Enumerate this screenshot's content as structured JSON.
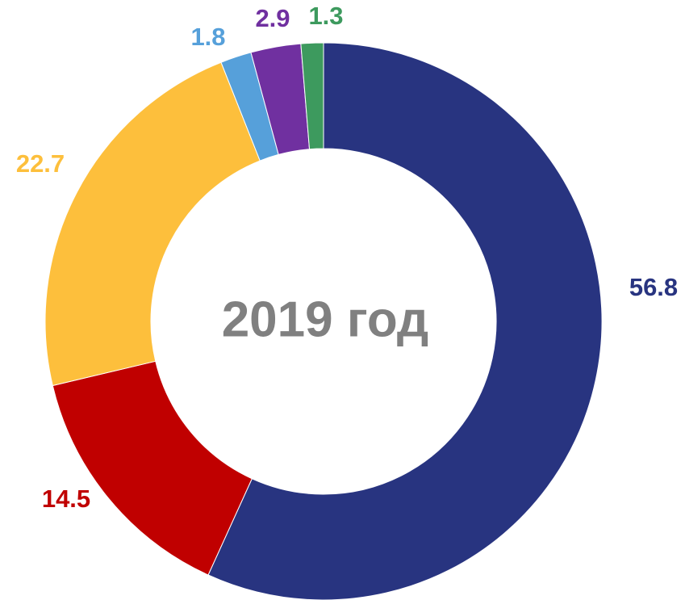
{
  "chart_data": {
    "type": "donut",
    "title": "2019 год",
    "categories": [
      null,
      null,
      null,
      null,
      null,
      null
    ],
    "values": [
      56.8,
      14.5,
      22.7,
      1.8,
      2.9,
      1.3
    ],
    "colors": [
      "#283480",
      "#c00000",
      "#fdbf3c",
      "#56a0da",
      "#7030a0",
      "#3d9a5e"
    ]
  }
}
